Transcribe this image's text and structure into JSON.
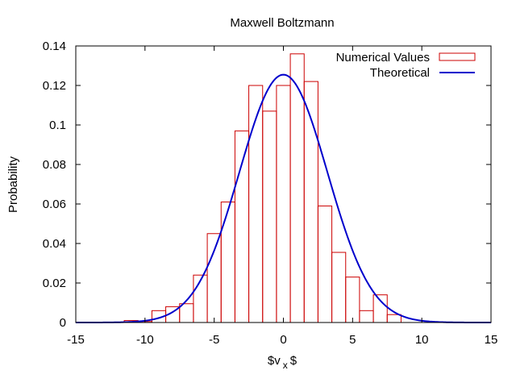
{
  "chart_data": {
    "type": "bar",
    "title": "Maxwell Boltzmann",
    "xlabel_main": "$v",
    "xlabel_sub": "x",
    "xlabel_tail": "$",
    "ylabel": "Probability",
    "xlim": [
      -15,
      15
    ],
    "ylim": [
      0,
      0.14
    ],
    "xticks": [
      -15,
      -10,
      -5,
      0,
      5,
      10,
      15
    ],
    "xtick_labels": [
      "-15",
      "-10",
      "-5",
      "0",
      "5",
      "10",
      "15"
    ],
    "yticks": [
      0,
      0.02,
      0.04,
      0.06,
      0.08,
      0.1,
      0.12,
      0.14
    ],
    "ytick_labels": [
      "0",
      "0.02",
      "0.04",
      "0.06",
      "0.08",
      "0.1",
      "0.12",
      "0.14"
    ],
    "legend_position": "top-right",
    "histogram": {
      "name": "Numerical Values",
      "color": "#cc0000",
      "bin_width": 1,
      "bins": [
        {
          "center": -11,
          "value": 0.001
        },
        {
          "center": -10,
          "value": 0.0005
        },
        {
          "center": -9,
          "value": 0.006
        },
        {
          "center": -8,
          "value": 0.008
        },
        {
          "center": -7,
          "value": 0.0095
        },
        {
          "center": -6,
          "value": 0.024
        },
        {
          "center": -5,
          "value": 0.045
        },
        {
          "center": -4,
          "value": 0.061
        },
        {
          "center": -3,
          "value": 0.097
        },
        {
          "center": -2,
          "value": 0.12
        },
        {
          "center": -1,
          "value": 0.107
        },
        {
          "center": 0,
          "value": 0.12
        },
        {
          "center": 1,
          "value": 0.136
        },
        {
          "center": 2,
          "value": 0.122
        },
        {
          "center": 3,
          "value": 0.059
        },
        {
          "center": 4,
          "value": 0.0355
        },
        {
          "center": 5,
          "value": 0.023
        },
        {
          "center": 6,
          "value": 0.006
        },
        {
          "center": 7,
          "value": 0.014
        },
        {
          "center": 8,
          "value": 0.004
        }
      ]
    },
    "curve": {
      "name": "Theoretical",
      "color": "#0000cc",
      "mean": 0,
      "sigma": 3.18
    }
  }
}
